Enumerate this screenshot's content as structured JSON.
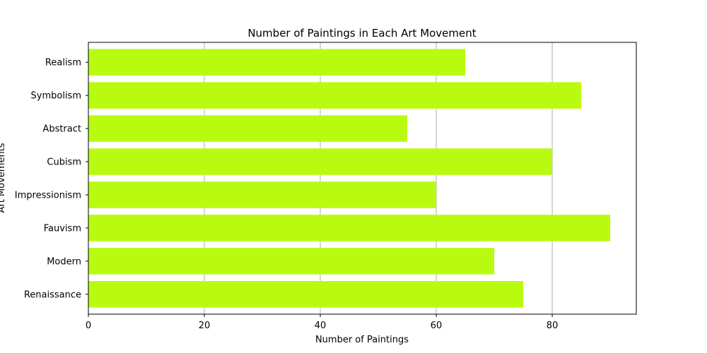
{
  "chart_data": {
    "type": "bar",
    "orientation": "horizontal",
    "title": "Number of Paintings in Each Art Movement",
    "xlabel": "Number of Paintings",
    "ylabel": "Art Movements",
    "categories": [
      "Renaissance",
      "Modern",
      "Fauvism",
      "Impressionism",
      "Cubism",
      "Abstract",
      "Symbolism",
      "Realism"
    ],
    "values": [
      75,
      70,
      90,
      60,
      80,
      55,
      85,
      65
    ],
    "xlim": [
      0,
      94.5
    ],
    "xticks": [
      0,
      20,
      40,
      60,
      80
    ],
    "grid": "x-axis vertical lines",
    "bar_color": "#b9fb10",
    "grid_color": "#b0b0b0"
  }
}
